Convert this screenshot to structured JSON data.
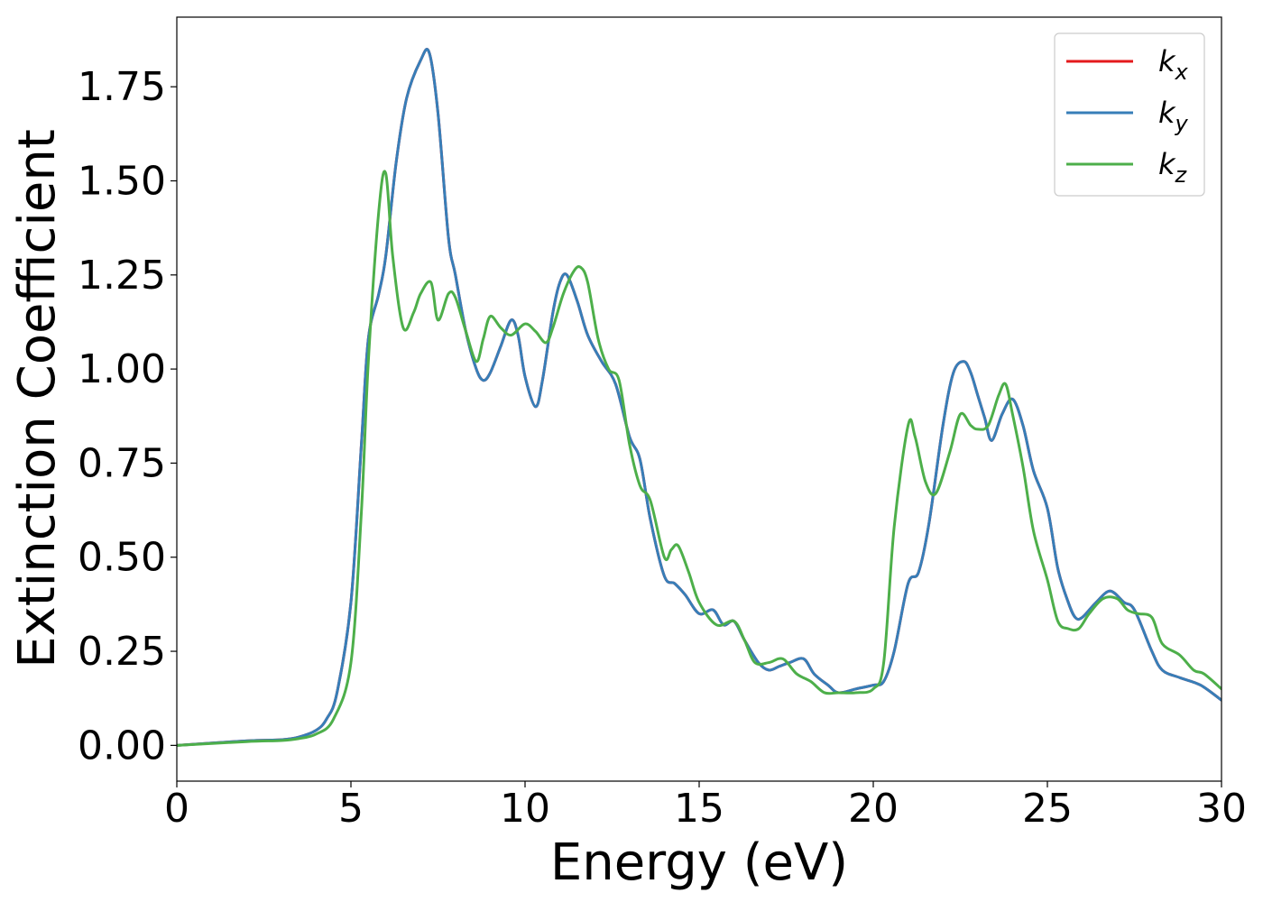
{
  "chart_data": {
    "type": "line",
    "xlabel": "Energy (eV)",
    "ylabel": "Extinction Coefficient",
    "xlim": [
      0,
      30
    ],
    "ylim": [
      -0.095,
      1.935
    ],
    "xticks": [
      0,
      5,
      10,
      15,
      20,
      25,
      30
    ],
    "xtick_labels": [
      "0",
      "5",
      "10",
      "15",
      "20",
      "25",
      "30"
    ],
    "yticks": [
      0,
      0.25,
      0.5,
      0.75,
      1.0,
      1.25,
      1.5,
      1.75
    ],
    "ytick_labels": [
      "0.00",
      "0.25",
      "0.50",
      "0.75",
      "1.00",
      "1.25",
      "1.50",
      "1.75"
    ],
    "grid": false,
    "legend_position": "top-right",
    "series": [
      {
        "name": "k_x",
        "sub": "x",
        "color": "#e41a1c",
        "x": [
          0,
          2,
          3,
          3.5,
          4,
          4.3,
          4.6,
          5,
          5.3,
          5.5,
          5.8,
          6,
          6.3,
          6.6,
          7,
          7.25,
          7.5,
          7.8,
          8,
          8.3,
          8.6,
          8.8,
          9,
          9.3,
          9.6,
          9.8,
          10,
          10.3,
          10.5,
          10.8,
          11,
          11.2,
          11.5,
          11.8,
          12.2,
          12.6,
          13,
          13.3,
          13.6,
          14,
          14.3,
          14.6,
          15,
          15.4,
          15.7,
          16,
          16.3,
          16.7,
          17,
          17.3,
          17.6,
          18,
          18.3,
          18.7,
          19,
          19.5,
          20,
          20.3,
          20.6,
          21,
          21.3,
          21.6,
          22,
          22.3,
          22.6,
          22.8,
          23,
          23.2,
          23.4,
          23.7,
          24,
          24.3,
          24.6,
          25,
          25.3,
          25.6,
          25.8,
          26,
          26.4,
          26.8,
          27.2,
          27.5,
          28,
          28.3,
          28.8,
          29.4,
          30
        ],
        "y": [
          0,
          0.012,
          0.015,
          0.022,
          0.04,
          0.07,
          0.14,
          0.38,
          0.8,
          1.08,
          1.2,
          1.3,
          1.55,
          1.72,
          1.82,
          1.84,
          1.68,
          1.35,
          1.25,
          1.1,
          1.0,
          0.97,
          0.99,
          1.06,
          1.13,
          1.09,
          0.98,
          0.9,
          0.97,
          1.15,
          1.23,
          1.25,
          1.18,
          1.09,
          1.02,
          0.96,
          0.82,
          0.76,
          0.6,
          0.45,
          0.43,
          0.4,
          0.35,
          0.36,
          0.32,
          0.33,
          0.28,
          0.22,
          0.2,
          0.21,
          0.22,
          0.23,
          0.19,
          0.16,
          0.14,
          0.15,
          0.16,
          0.17,
          0.25,
          0.43,
          0.46,
          0.59,
          0.85,
          0.99,
          1.02,
          0.99,
          0.93,
          0.87,
          0.81,
          0.88,
          0.92,
          0.85,
          0.73,
          0.63,
          0.47,
          0.38,
          0.34,
          0.34,
          0.38,
          0.41,
          0.38,
          0.36,
          0.25,
          0.2,
          0.18,
          0.16,
          0.12
        ]
      },
      {
        "name": "k_y",
        "sub": "y",
        "color": "#377eb8",
        "x": [
          0,
          2,
          3,
          3.5,
          4,
          4.3,
          4.6,
          5,
          5.3,
          5.5,
          5.8,
          6,
          6.3,
          6.6,
          7,
          7.25,
          7.5,
          7.8,
          8,
          8.3,
          8.6,
          8.8,
          9,
          9.3,
          9.6,
          9.8,
          10,
          10.3,
          10.5,
          10.8,
          11,
          11.2,
          11.5,
          11.8,
          12.2,
          12.6,
          13,
          13.3,
          13.6,
          14,
          14.3,
          14.6,
          15,
          15.4,
          15.7,
          16,
          16.3,
          16.7,
          17,
          17.3,
          17.6,
          18,
          18.3,
          18.7,
          19,
          19.5,
          20,
          20.3,
          20.6,
          21,
          21.3,
          21.6,
          22,
          22.3,
          22.6,
          22.8,
          23,
          23.2,
          23.4,
          23.7,
          24,
          24.3,
          24.6,
          25,
          25.3,
          25.6,
          25.8,
          26,
          26.4,
          26.8,
          27.2,
          27.5,
          28,
          28.3,
          28.8,
          29.4,
          30
        ],
        "y": [
          0,
          0.012,
          0.015,
          0.022,
          0.04,
          0.07,
          0.14,
          0.38,
          0.8,
          1.08,
          1.2,
          1.3,
          1.55,
          1.72,
          1.82,
          1.84,
          1.68,
          1.35,
          1.25,
          1.1,
          1.0,
          0.97,
          0.99,
          1.06,
          1.13,
          1.09,
          0.98,
          0.9,
          0.97,
          1.15,
          1.23,
          1.25,
          1.18,
          1.09,
          1.02,
          0.96,
          0.82,
          0.76,
          0.6,
          0.45,
          0.43,
          0.4,
          0.35,
          0.36,
          0.32,
          0.33,
          0.28,
          0.22,
          0.2,
          0.21,
          0.22,
          0.23,
          0.19,
          0.16,
          0.14,
          0.15,
          0.16,
          0.17,
          0.25,
          0.43,
          0.46,
          0.59,
          0.85,
          0.99,
          1.02,
          0.99,
          0.93,
          0.87,
          0.81,
          0.88,
          0.92,
          0.85,
          0.73,
          0.63,
          0.47,
          0.38,
          0.34,
          0.34,
          0.38,
          0.41,
          0.38,
          0.36,
          0.25,
          0.2,
          0.18,
          0.16,
          0.12
        ]
      },
      {
        "name": "k_z",
        "sub": "z",
        "color": "#4daf4a",
        "x": [
          0,
          2,
          3,
          3.5,
          4,
          4.5,
          5,
          5.3,
          5.5,
          5.8,
          6,
          6.2,
          6.5,
          6.8,
          7,
          7.3,
          7.5,
          7.8,
          8,
          8.3,
          8.6,
          8.8,
          9,
          9.3,
          9.6,
          10,
          10.3,
          10.6,
          10.8,
          11.1,
          11.4,
          11.6,
          11.8,
          12.1,
          12.4,
          12.7,
          13,
          13.3,
          13.6,
          14,
          14.2,
          14.4,
          14.7,
          15,
          15.5,
          16,
          16.3,
          16.6,
          17,
          17.4,
          17.8,
          18.2,
          18.6,
          19,
          19.5,
          20,
          20.3,
          20.6,
          21,
          21.2,
          21.5,
          21.8,
          22.2,
          22.5,
          22.8,
          23,
          23.3,
          23.6,
          23.8,
          24,
          24.3,
          24.6,
          25,
          25.3,
          25.6,
          25.9,
          26.2,
          26.6,
          27,
          27.3,
          27.6,
          28,
          28.3,
          28.8,
          29.2,
          29.5,
          30
        ],
        "y": [
          0,
          0.01,
          0.013,
          0.018,
          0.03,
          0.07,
          0.22,
          0.62,
          1.02,
          1.42,
          1.52,
          1.3,
          1.11,
          1.15,
          1.2,
          1.23,
          1.13,
          1.2,
          1.19,
          1.1,
          1.02,
          1.08,
          1.14,
          1.11,
          1.09,
          1.12,
          1.1,
          1.07,
          1.11,
          1.2,
          1.26,
          1.27,
          1.23,
          1.08,
          1.0,
          0.97,
          0.8,
          0.69,
          0.65,
          0.5,
          0.52,
          0.53,
          0.46,
          0.38,
          0.32,
          0.33,
          0.28,
          0.22,
          0.22,
          0.23,
          0.19,
          0.17,
          0.14,
          0.14,
          0.14,
          0.15,
          0.22,
          0.58,
          0.85,
          0.82,
          0.7,
          0.67,
          0.78,
          0.88,
          0.85,
          0.84,
          0.85,
          0.93,
          0.96,
          0.88,
          0.74,
          0.57,
          0.44,
          0.33,
          0.31,
          0.31,
          0.35,
          0.39,
          0.39,
          0.36,
          0.35,
          0.34,
          0.27,
          0.24,
          0.2,
          0.19,
          0.15
        ]
      }
    ]
  }
}
